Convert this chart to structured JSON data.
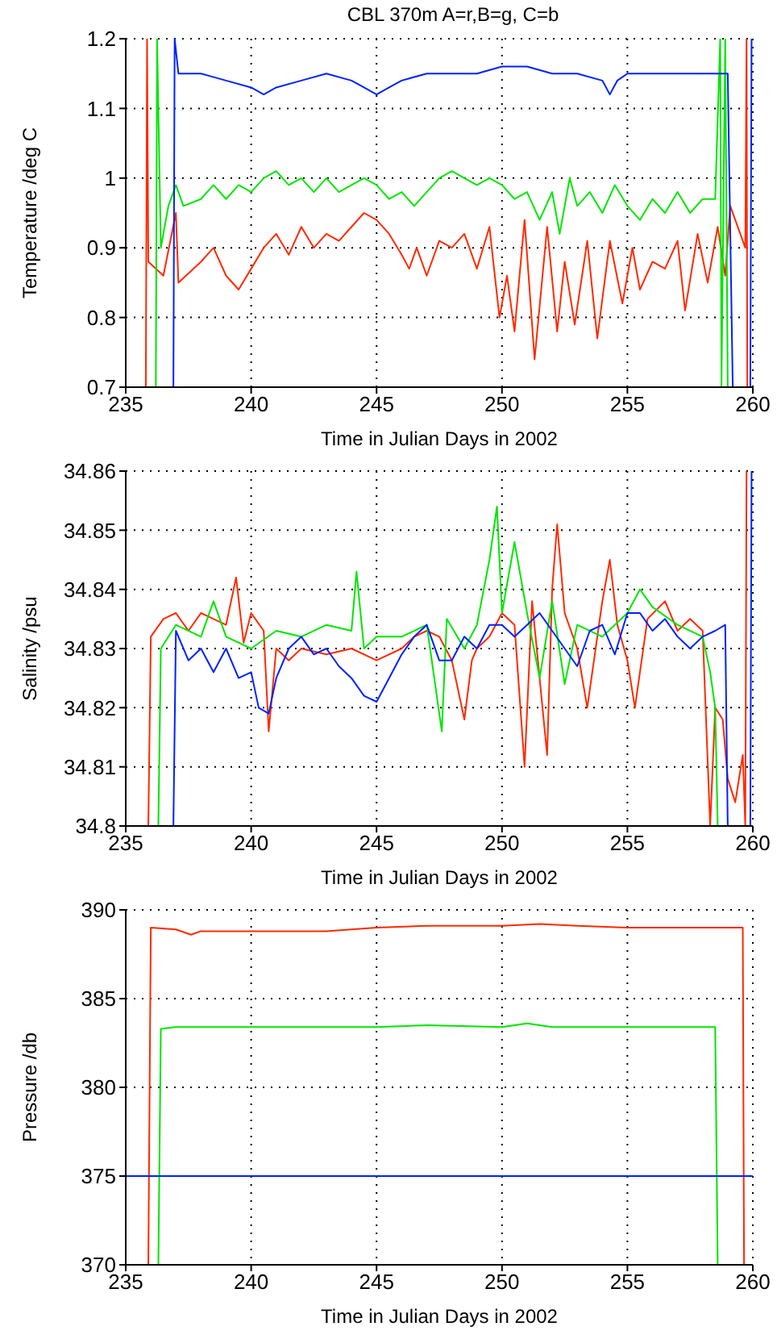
{
  "chart_data": [
    {
      "type": "line",
      "title": "CBL 370m A=r,B=g, C=b",
      "xlabel": "Time in Julian Days in 2002",
      "ylabel": "Temperature /deg C",
      "xlim": [
        235,
        260
      ],
      "xticks": [
        235,
        240,
        245,
        250,
        255,
        260
      ],
      "ylim": [
        0.7,
        1.2
      ],
      "yticks": [
        0.7,
        0.8,
        0.9,
        1,
        1.1,
        1.2
      ],
      "grid": true,
      "series": [
        {
          "color": "#ff2a00",
          "x": [
            235.8,
            235.85,
            235.9,
            236.5,
            237,
            237.1,
            238,
            238.5,
            239,
            239.5,
            240,
            240.5,
            241,
            241.5,
            242,
            242.5,
            243,
            243.5,
            244,
            244.5,
            245,
            245.5,
            246,
            246.3,
            246.6,
            247,
            247.5,
            248,
            248.5,
            249,
            249.5,
            249.9,
            250.2,
            250.5,
            250.9,
            251.3,
            251.8,
            252.2,
            252.5,
            252.9,
            253.4,
            253.8,
            254.3,
            254.8,
            255.2,
            255.5,
            256,
            256.5,
            257,
            257.3,
            257.8,
            258.2,
            258.6,
            258.9,
            259.1,
            259.5,
            259.7,
            259.75,
            259.78
          ],
          "values": [
            0.7,
            1.2,
            0.88,
            0.86,
            0.95,
            0.85,
            0.88,
            0.9,
            0.86,
            0.84,
            0.87,
            0.9,
            0.92,
            0.89,
            0.93,
            0.9,
            0.92,
            0.91,
            0.93,
            0.95,
            0.94,
            0.92,
            0.89,
            0.87,
            0.9,
            0.86,
            0.91,
            0.9,
            0.92,
            0.87,
            0.93,
            0.8,
            0.86,
            0.78,
            0.94,
            0.74,
            0.93,
            0.78,
            0.88,
            0.79,
            0.91,
            0.77,
            0.91,
            0.82,
            0.9,
            0.84,
            0.88,
            0.87,
            0.91,
            0.81,
            0.92,
            0.85,
            0.93,
            0.86,
            0.96,
            0.92,
            0.9,
            1.2,
            0.7
          ]
        },
        {
          "color": "#00e600",
          "x": [
            236.2,
            236.25,
            236.4,
            236.7,
            237,
            237.3,
            238,
            238.5,
            239,
            239.5,
            240,
            240.5,
            241,
            241.5,
            242,
            242.5,
            243,
            243.5,
            244,
            244.5,
            245,
            245.5,
            246,
            246.5,
            247,
            247.5,
            248,
            248.5,
            249,
            249.5,
            250,
            250.5,
            251,
            251.5,
            252,
            252.3,
            252.7,
            253,
            253.5,
            254,
            254.5,
            255,
            255.5,
            256,
            256.5,
            257,
            257.5,
            258,
            258.5,
            258.7,
            258.75,
            258.9,
            259
          ],
          "values": [
            0.7,
            1.2,
            0.9,
            0.96,
            0.99,
            0.96,
            0.97,
            0.99,
            0.97,
            0.99,
            0.98,
            1,
            1.01,
            0.99,
            1,
            0.98,
            1,
            0.98,
            0.99,
            1,
            0.99,
            0.97,
            0.98,
            0.96,
            0.98,
            1,
            1.01,
            1,
            0.99,
            1,
            0.99,
            0.97,
            0.98,
            0.94,
            0.98,
            0.92,
            1,
            0.96,
            0.98,
            0.95,
            0.99,
            0.96,
            0.94,
            0.97,
            0.95,
            0.98,
            0.95,
            0.97,
            0.97,
            1.2,
            0.7,
            1.2,
            0.7
          ]
        },
        {
          "color": "#0022ff",
          "x": [
            236.9,
            236.95,
            237.1,
            238,
            239,
            240,
            240.5,
            241,
            242,
            243,
            244,
            244.5,
            245,
            245.5,
            246,
            247,
            248,
            249,
            250,
            251,
            252,
            253,
            254,
            254.3,
            254.6,
            255,
            256,
            257,
            258,
            259,
            259.2,
            259.9,
            259.95
          ],
          "values": [
            0.7,
            1.2,
            1.15,
            1.15,
            1.14,
            1.13,
            1.12,
            1.13,
            1.14,
            1.15,
            1.14,
            1.13,
            1.12,
            1.13,
            1.14,
            1.15,
            1.15,
            1.15,
            1.16,
            1.16,
            1.15,
            1.15,
            1.14,
            1.12,
            1.14,
            1.15,
            1.15,
            1.15,
            1.15,
            1.15,
            0.7,
            0.7,
            1.2
          ]
        }
      ]
    },
    {
      "type": "line",
      "xlabel": "Time in Julian Days in 2002",
      "ylabel": "Salinity /psu",
      "xlim": [
        235,
        260
      ],
      "xticks": [
        235,
        240,
        245,
        250,
        255,
        260
      ],
      "ylim": [
        34.8,
        34.86
      ],
      "yticks": [
        34.8,
        34.81,
        34.82,
        34.83,
        34.84,
        34.85,
        34.86
      ],
      "grid": true,
      "series": [
        {
          "color": "#ff2a00",
          "x": [
            235.9,
            236,
            236.5,
            237,
            237.5,
            238,
            238.5,
            239,
            239.4,
            239.7,
            240,
            240.5,
            240.7,
            241,
            241.5,
            242,
            243,
            244,
            245,
            246,
            246.5,
            247,
            247.5,
            248,
            248.5,
            248.8,
            249,
            249.5,
            250,
            250.5,
            250.9,
            251.2,
            251.8,
            252,
            252.2,
            252.5,
            253,
            253.4,
            254,
            254.3,
            254.6,
            255,
            255.3,
            255.8,
            256.5,
            257,
            257.5,
            258,
            258.3,
            258.5,
            258.8,
            259,
            259.3,
            259.6,
            259.7,
            259.75
          ],
          "values": [
            34.8,
            34.832,
            34.835,
            34.836,
            34.833,
            34.836,
            34.835,
            34.834,
            34.842,
            34.831,
            34.836,
            34.833,
            34.816,
            34.83,
            34.828,
            34.83,
            34.829,
            34.83,
            34.828,
            34.83,
            34.832,
            34.833,
            34.832,
            34.828,
            34.818,
            34.828,
            34.83,
            34.832,
            34.836,
            34.834,
            34.81,
            34.838,
            34.812,
            34.84,
            34.851,
            34.836,
            34.83,
            34.82,
            34.838,
            34.845,
            34.834,
            34.828,
            34.82,
            34.835,
            34.838,
            34.833,
            34.835,
            34.833,
            34.8,
            34.82,
            34.818,
            34.808,
            34.804,
            34.812,
            34.8,
            34.86
          ]
        },
        {
          "color": "#00e600",
          "x": [
            236.3,
            236.4,
            237,
            238,
            238.5,
            239,
            240,
            241,
            242,
            243,
            244,
            244.2,
            244.5,
            245,
            246,
            247,
            247.6,
            247.8,
            248.5,
            249,
            249.5,
            249.8,
            250,
            250.5,
            251,
            251.5,
            252,
            252.5,
            253,
            254,
            255,
            255.5,
            256,
            257,
            258,
            258.3,
            258.5,
            258.6
          ],
          "values": [
            34.8,
            34.83,
            34.834,
            34.832,
            34.838,
            34.832,
            34.83,
            34.833,
            34.832,
            34.834,
            34.833,
            34.843,
            34.83,
            34.832,
            34.832,
            34.834,
            34.816,
            34.835,
            34.83,
            34.834,
            34.845,
            34.854,
            34.836,
            34.848,
            34.836,
            34.825,
            34.838,
            34.824,
            34.834,
            34.832,
            34.836,
            34.84,
            34.837,
            34.834,
            34.832,
            34.826,
            34.82,
            34.8
          ]
        },
        {
          "color": "#0022ff",
          "x": [
            236.9,
            237,
            237.5,
            238,
            238.5,
            239,
            239.5,
            240,
            240.3,
            240.7,
            241,
            241.5,
            242,
            242.5,
            243,
            243.5,
            244,
            244.5,
            245,
            245.5,
            246,
            246.5,
            247,
            247.5,
            248,
            248.5,
            249,
            249.5,
            250,
            250.5,
            251,
            251.5,
            252,
            252.5,
            253,
            253.5,
            254,
            254.5,
            255,
            255.5,
            256,
            256.5,
            257,
            257.5,
            258,
            258.5,
            258.9,
            259,
            259.9,
            259.95
          ],
          "values": [
            34.8,
            34.833,
            34.828,
            34.83,
            34.826,
            34.83,
            34.825,
            34.826,
            34.82,
            34.819,
            34.825,
            34.83,
            34.832,
            34.829,
            34.83,
            34.827,
            34.825,
            34.822,
            34.821,
            34.825,
            34.829,
            34.832,
            34.834,
            34.828,
            34.828,
            34.832,
            34.83,
            34.834,
            34.834,
            34.832,
            34.834,
            34.836,
            34.833,
            34.83,
            34.827,
            34.833,
            34.834,
            34.829,
            34.836,
            34.836,
            34.833,
            34.835,
            34.832,
            34.83,
            34.832,
            34.833,
            34.834,
            34.8,
            34.8,
            34.86
          ]
        }
      ]
    },
    {
      "type": "line",
      "xlabel": "Time in Julian Days in 2002",
      "ylabel": "Pressure /db",
      "xlim": [
        235,
        260
      ],
      "xticks": [
        235,
        240,
        245,
        250,
        255,
        260
      ],
      "ylim": [
        370,
        390
      ],
      "yticks": [
        370,
        375,
        380,
        385,
        390
      ],
      "grid": true,
      "series": [
        {
          "color": "#ff2a00",
          "x": [
            235.9,
            236,
            237,
            237.6,
            238,
            240,
            243,
            245,
            247,
            250,
            251.5,
            253,
            255,
            258,
            259.6,
            259.65
          ],
          "values": [
            370,
            389,
            388.9,
            388.6,
            388.8,
            388.8,
            388.8,
            389,
            389.1,
            389.1,
            389.2,
            389.1,
            389,
            389,
            389,
            370
          ]
        },
        {
          "color": "#00e600",
          "x": [
            236.3,
            236.4,
            237,
            240,
            245,
            247,
            250,
            251,
            252,
            255,
            258.5,
            258.6
          ],
          "values": [
            370,
            383.3,
            383.4,
            383.4,
            383.4,
            383.5,
            383.4,
            383.6,
            383.4,
            383.4,
            383.4,
            370
          ]
        },
        {
          "color": "#0022ff",
          "x": [
            235,
            260
          ],
          "values": [
            375,
            375
          ]
        }
      ]
    }
  ]
}
